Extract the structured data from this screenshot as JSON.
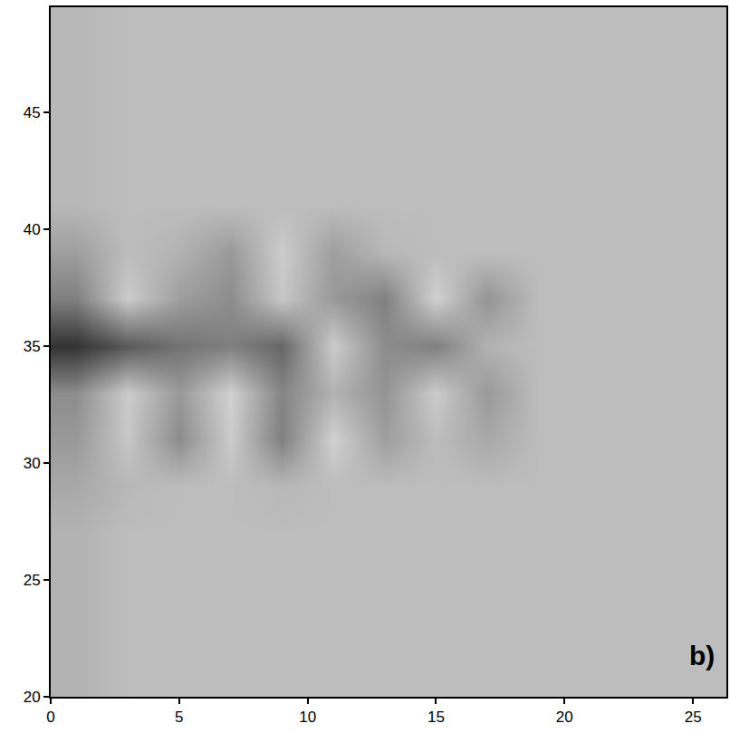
{
  "chart_data": {
    "type": "heatmap",
    "x": [
      1,
      3,
      5,
      7,
      9,
      11,
      13,
      15,
      17,
      19,
      21,
      23,
      25
    ],
    "y": [
      21,
      23,
      25,
      27,
      29,
      31,
      33,
      35,
      37,
      39,
      41,
      43,
      45,
      47,
      49
    ],
    "z": [
      [
        0.7,
        0.74,
        0.74,
        0.74,
        0.74,
        0.74,
        0.74,
        0.74,
        0.74,
        0.74,
        0.74,
        0.74,
        0.74
      ],
      [
        0.7,
        0.74,
        0.74,
        0.74,
        0.74,
        0.74,
        0.74,
        0.74,
        0.74,
        0.74,
        0.74,
        0.74,
        0.74
      ],
      [
        0.7,
        0.74,
        0.74,
        0.74,
        0.74,
        0.74,
        0.74,
        0.74,
        0.74,
        0.74,
        0.74,
        0.74,
        0.74
      ],
      [
        0.7,
        0.74,
        0.74,
        0.74,
        0.74,
        0.74,
        0.74,
        0.74,
        0.74,
        0.74,
        0.74,
        0.74,
        0.74
      ],
      [
        0.66,
        0.72,
        0.74,
        0.74,
        0.72,
        0.74,
        0.74,
        0.74,
        0.74,
        0.74,
        0.74,
        0.74,
        0.74
      ],
      [
        0.6,
        0.78,
        0.55,
        0.8,
        0.5,
        0.82,
        0.62,
        0.74,
        0.66,
        0.74,
        0.74,
        0.74,
        0.74
      ],
      [
        0.55,
        0.8,
        0.6,
        0.82,
        0.52,
        0.7,
        0.58,
        0.8,
        0.6,
        0.74,
        0.74,
        0.74,
        0.74
      ],
      [
        0.2,
        0.35,
        0.45,
        0.5,
        0.4,
        0.8,
        0.55,
        0.5,
        0.7,
        0.74,
        0.74,
        0.74,
        0.74
      ],
      [
        0.5,
        0.8,
        0.62,
        0.55,
        0.78,
        0.6,
        0.5,
        0.82,
        0.58,
        0.74,
        0.74,
        0.74,
        0.74
      ],
      [
        0.62,
        0.74,
        0.7,
        0.6,
        0.8,
        0.62,
        0.72,
        0.74,
        0.74,
        0.74,
        0.74,
        0.74,
        0.74
      ],
      [
        0.72,
        0.74,
        0.74,
        0.74,
        0.74,
        0.74,
        0.74,
        0.74,
        0.74,
        0.74,
        0.74,
        0.74,
        0.74
      ],
      [
        0.72,
        0.74,
        0.74,
        0.74,
        0.74,
        0.74,
        0.74,
        0.74,
        0.74,
        0.74,
        0.74,
        0.74,
        0.74
      ],
      [
        0.72,
        0.74,
        0.74,
        0.74,
        0.74,
        0.74,
        0.74,
        0.74,
        0.74,
        0.74,
        0.74,
        0.74,
        0.74
      ],
      [
        0.72,
        0.74,
        0.74,
        0.74,
        0.74,
        0.74,
        0.74,
        0.74,
        0.74,
        0.74,
        0.74,
        0.74,
        0.74
      ],
      [
        0.72,
        0.74,
        0.74,
        0.74,
        0.74,
        0.74,
        0.74,
        0.74,
        0.74,
        0.74,
        0.74,
        0.74,
        0.74
      ]
    ],
    "zlim": [
      0,
      1
    ],
    "xlim": [
      0,
      26.3
    ],
    "ylim": [
      20,
      49.5
    ],
    "xticks": [
      0,
      5,
      10,
      15,
      20,
      25
    ],
    "yticks": [
      20,
      25,
      30,
      35,
      40,
      45
    ],
    "annotations": [
      "b)"
    ],
    "grid": false
  }
}
